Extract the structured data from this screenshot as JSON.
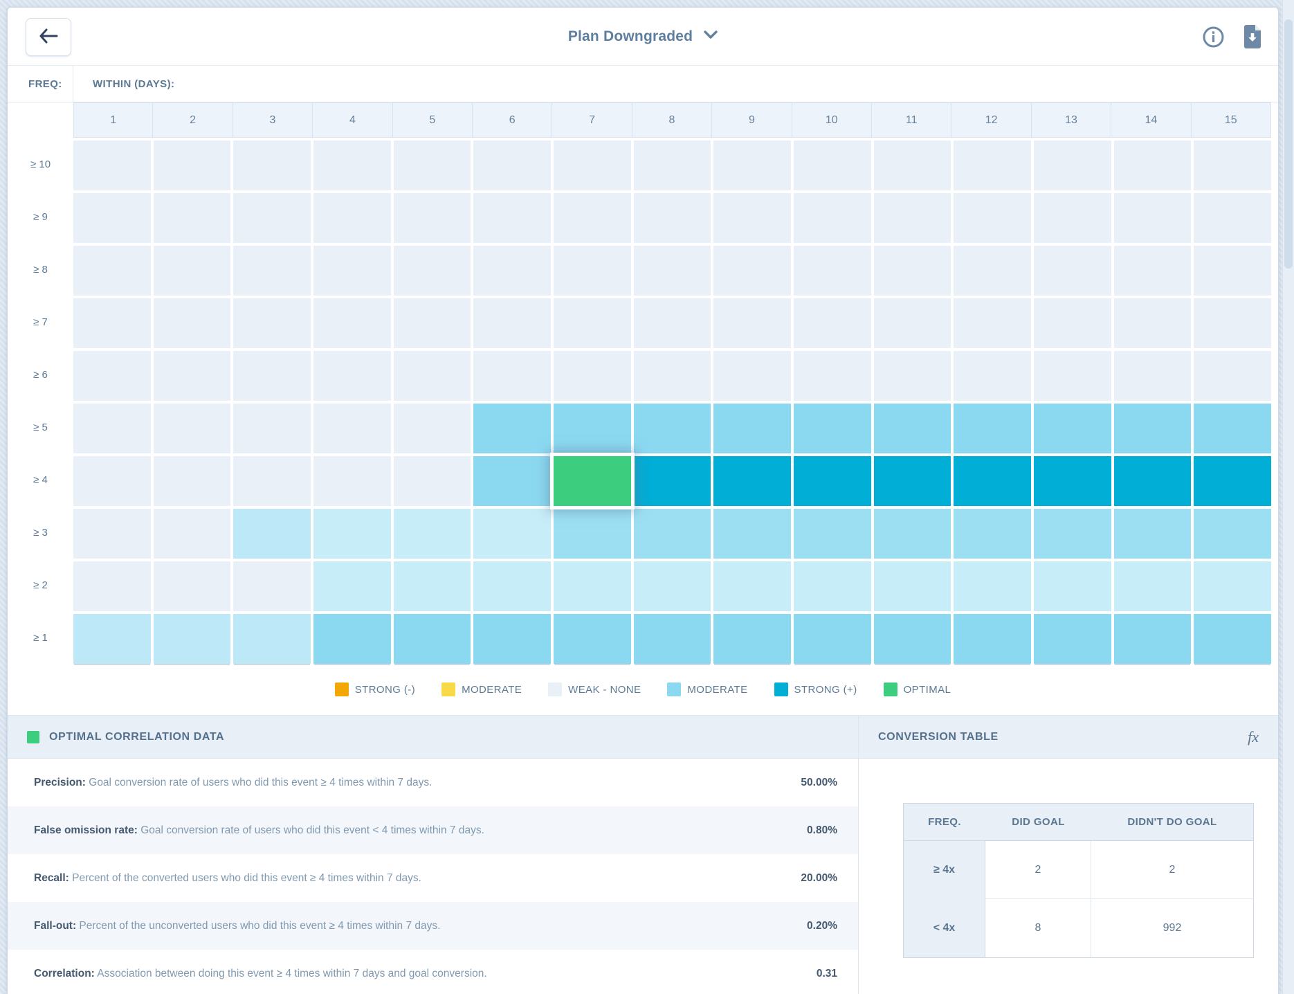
{
  "header": {
    "title": "Plan Downgraded",
    "icons": {
      "info": "info",
      "download": "download"
    }
  },
  "heatmap": {
    "freq_label": "FREQ:",
    "within_label": "WITHIN (DAYS):",
    "columns": [
      "1",
      "2",
      "3",
      "4",
      "5",
      "6",
      "7",
      "8",
      "9",
      "10",
      "11",
      "12",
      "13",
      "14",
      "15"
    ],
    "rows": [
      {
        "label": "≥ 10",
        "cells": [
          "w",
          "w",
          "w",
          "w",
          "w",
          "w",
          "w",
          "w",
          "w",
          "w",
          "w",
          "w",
          "w",
          "w",
          "w"
        ]
      },
      {
        "label": "≥ 9",
        "cells": [
          "w",
          "w",
          "w",
          "w",
          "w",
          "w",
          "w",
          "w",
          "w",
          "w",
          "w",
          "w",
          "w",
          "w",
          "w"
        ]
      },
      {
        "label": "≥ 8",
        "cells": [
          "w",
          "w",
          "w",
          "w",
          "w",
          "w",
          "w",
          "w",
          "w",
          "w",
          "w",
          "w",
          "w",
          "w",
          "w"
        ]
      },
      {
        "label": "≥ 7",
        "cells": [
          "w",
          "w",
          "w",
          "w",
          "w",
          "w",
          "w",
          "w",
          "w",
          "w",
          "w",
          "w",
          "w",
          "w",
          "w"
        ]
      },
      {
        "label": "≥ 6",
        "cells": [
          "w",
          "w",
          "w",
          "w",
          "w",
          "w",
          "w",
          "w",
          "w",
          "w",
          "w",
          "w",
          "w",
          "w",
          "w"
        ]
      },
      {
        "label": "≥ 5",
        "cells": [
          "w",
          "w",
          "w",
          "w",
          "w",
          "m",
          "m",
          "m",
          "m",
          "m",
          "m",
          "m",
          "m",
          "m",
          "m"
        ]
      },
      {
        "label": "≥ 4",
        "cells": [
          "w",
          "w",
          "w",
          "w",
          "w",
          "m",
          "o",
          "s",
          "s",
          "s",
          "s",
          "s",
          "s",
          "s",
          "s"
        ]
      },
      {
        "label": "≥ 3",
        "cells": [
          "w",
          "w",
          "p2",
          "p",
          "p",
          "p",
          "m2",
          "m2",
          "m2",
          "m2",
          "m2",
          "m2",
          "m2",
          "m2",
          "m2"
        ]
      },
      {
        "label": "≥ 2",
        "cells": [
          "w",
          "w",
          "w",
          "p",
          "p",
          "p",
          "p",
          "p",
          "p",
          "p",
          "p",
          "p",
          "p",
          "p",
          "p"
        ]
      },
      {
        "label": "≥ 1",
        "cells": [
          "p2",
          "p2",
          "p2",
          "m",
          "m",
          "m",
          "m",
          "m",
          "m",
          "m",
          "m",
          "m",
          "m",
          "m",
          "m"
        ]
      }
    ],
    "optimal_cell": {
      "row": "≥ 4",
      "column": "7"
    }
  },
  "colors": {
    "cell": {
      "w": "#e9f0f8",
      "p": "#c7edf9",
      "p2": "#bce8f7",
      "m": "#8bd9f1",
      "m2": "#9cdff3",
      "s": "#00aed6",
      "o": "#3ccd7e"
    },
    "legend": {
      "strong_neg": "#f2a702",
      "moderate_neg": "#f8da49",
      "weak": "#e9f0f8",
      "moderate_pos": "#8bd9f1",
      "strong_pos": "#00aed6",
      "optimal": "#3ccd7e"
    },
    "accent_green": "#3ccd7e"
  },
  "legend": [
    {
      "label": "STRONG (-)",
      "key": "strong_neg",
      "dotted": false
    },
    {
      "label": "MODERATE",
      "key": "moderate_neg",
      "dotted": false
    },
    {
      "label": "WEAK - NONE",
      "key": "weak",
      "dotted": false
    },
    {
      "label": "MODERATE",
      "key": "moderate_pos",
      "dotted": true
    },
    {
      "label": "STRONG (+)",
      "key": "strong_pos",
      "dotted": false
    },
    {
      "label": "OPTIMAL",
      "key": "optimal",
      "dotted": false
    }
  ],
  "panels": {
    "optimal_correlation": {
      "title": "OPTIMAL CORRELATION DATA",
      "metrics": [
        {
          "label": "Precision:",
          "description": "Goal conversion rate of users who did this event ≥ 4 times within 7 days.",
          "value": "50.00%"
        },
        {
          "label": "False omission rate:",
          "description": "Goal conversion rate of users who did this event < 4 times within 7 days.",
          "value": "0.80%"
        },
        {
          "label": "Recall:",
          "description": "Percent of the converted users who did this event ≥ 4 times within 7 days.",
          "value": "20.00%"
        },
        {
          "label": "Fall-out:",
          "description": "Percent of the unconverted users who did this event ≥ 4 times within 7 days.",
          "value": "0.20%"
        },
        {
          "label": "Correlation:",
          "description": "Association between doing this event ≥ 4 times within 7 days and goal conversion.",
          "value": "0.31"
        }
      ]
    },
    "conversion_table": {
      "title": "CONVERSION TABLE",
      "fx_label": "fx",
      "headers": [
        "FREQ.",
        "DID GOAL",
        "DIDN'T DO GOAL"
      ],
      "rows": [
        {
          "freq": "≥ 4x",
          "did_goal": "2",
          "didnt_do_goal": "2"
        },
        {
          "freq": "< 4x",
          "did_goal": "8",
          "didnt_do_goal": "992"
        }
      ]
    }
  },
  "chart_data": {
    "type": "heatmap",
    "title": "Plan Downgraded",
    "xlabel": "WITHIN (DAYS):",
    "ylabel": "FREQ:",
    "x": [
      1,
      2,
      3,
      4,
      5,
      6,
      7,
      8,
      9,
      10,
      11,
      12,
      13,
      14,
      15
    ],
    "y": [
      "≥ 10",
      "≥ 9",
      "≥ 8",
      "≥ 7",
      "≥ 6",
      "≥ 5",
      "≥ 4",
      "≥ 3",
      "≥ 2",
      "≥ 1"
    ],
    "legend_entries": [
      "STRONG (-)",
      "MODERATE",
      "WEAK - NONE",
      "MODERATE",
      "STRONG (+)",
      "OPTIMAL"
    ],
    "legend_position": "bottom",
    "grid": true,
    "cell_strength_matrix_keys": "w=weak-none, p/p2=weak-moderate, m/m2=moderate(+), s=strong(+), o=optimal",
    "values": [
      [
        "w",
        "w",
        "w",
        "w",
        "w",
        "w",
        "w",
        "w",
        "w",
        "w",
        "w",
        "w",
        "w",
        "w",
        "w"
      ],
      [
        "w",
        "w",
        "w",
        "w",
        "w",
        "w",
        "w",
        "w",
        "w",
        "w",
        "w",
        "w",
        "w",
        "w",
        "w"
      ],
      [
        "w",
        "w",
        "w",
        "w",
        "w",
        "w",
        "w",
        "w",
        "w",
        "w",
        "w",
        "w",
        "w",
        "w",
        "w"
      ],
      [
        "w",
        "w",
        "w",
        "w",
        "w",
        "w",
        "w",
        "w",
        "w",
        "w",
        "w",
        "w",
        "w",
        "w",
        "w"
      ],
      [
        "w",
        "w",
        "w",
        "w",
        "w",
        "w",
        "w",
        "w",
        "w",
        "w",
        "w",
        "w",
        "w",
        "w",
        "w"
      ],
      [
        "w",
        "w",
        "w",
        "w",
        "w",
        "m",
        "m",
        "m",
        "m",
        "m",
        "m",
        "m",
        "m",
        "m",
        "m"
      ],
      [
        "w",
        "w",
        "w",
        "w",
        "w",
        "m",
        "o",
        "s",
        "s",
        "s",
        "s",
        "s",
        "s",
        "s",
        "s"
      ],
      [
        "w",
        "w",
        "p2",
        "p",
        "p",
        "p",
        "m2",
        "m2",
        "m2",
        "m2",
        "m2",
        "m2",
        "m2",
        "m2",
        "m2"
      ],
      [
        "w",
        "w",
        "w",
        "p",
        "p",
        "p",
        "p",
        "p",
        "p",
        "p",
        "p",
        "p",
        "p",
        "p",
        "p"
      ],
      [
        "p2",
        "p2",
        "p2",
        "m",
        "m",
        "m",
        "m",
        "m",
        "m",
        "m",
        "m",
        "m",
        "m",
        "m",
        "m"
      ]
    ],
    "annotations": [
      {
        "cell": [
          "≥ 4",
          7
        ],
        "label": "OPTIMAL selected cell"
      }
    ]
  }
}
